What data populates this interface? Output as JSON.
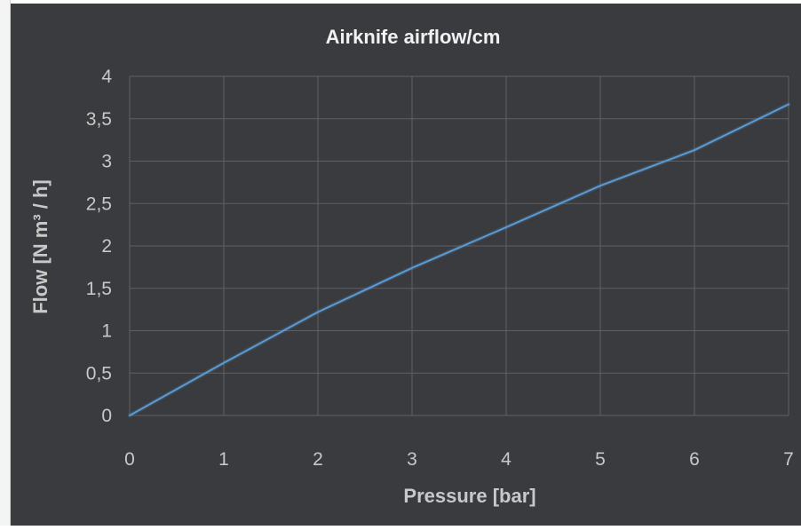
{
  "colors": {
    "background": "#3a3b3e",
    "gridline": "#5f6064",
    "series_line": "#5b9bd5",
    "text": "#c8c8c8",
    "title": "#f2f2f2"
  },
  "chart_data": {
    "type": "line",
    "title": "Airknife airflow/cm",
    "xlabel": "Pressure [bar]",
    "ylabel": "Flow [N m³ / h]",
    "xlim": [
      0,
      7
    ],
    "ylim": [
      0,
      4
    ],
    "x_ticks": [
      "0",
      "1",
      "2",
      "3",
      "4",
      "5",
      "6",
      "7"
    ],
    "y_ticks": [
      "0",
      "0,5",
      "1",
      "1,5",
      "2",
      "2,5",
      "3",
      "3,5",
      "4"
    ],
    "grid": true,
    "legend": "none",
    "series": [
      {
        "x": [
          0,
          1,
          2,
          3,
          4,
          5,
          6,
          7
        ],
        "values": [
          0,
          0.62,
          1.22,
          1.74,
          2.22,
          2.71,
          3.13,
          3.67
        ]
      }
    ]
  }
}
